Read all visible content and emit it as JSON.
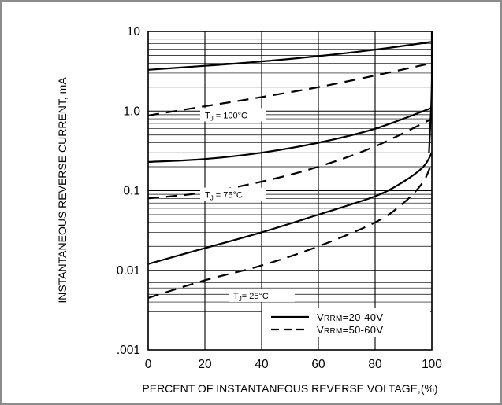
{
  "chart_data": {
    "type": "line",
    "title": "",
    "xlabel": "PERCENT OF INSTANTANEOUS REVERSE VOLTAGE,(%)",
    "ylabel": "INSTANTANEOUS REVERSE CURRENT, mA",
    "xlim": [
      0,
      100
    ],
    "ylim": [
      0.001,
      10
    ],
    "y_scale": "log",
    "grid": true,
    "x_ticks": [
      0,
      20,
      40,
      60,
      80,
      100
    ],
    "x_tick_labels": [
      "0",
      "20",
      "40",
      "60",
      "80",
      "100"
    ],
    "y_ticks": [
      0.001,
      0.01,
      0.1,
      1,
      10
    ],
    "y_tick_labels": [
      ".001",
      "0.01",
      "0.1",
      "1.0",
      "10"
    ],
    "legend": {
      "position": "bottom-right",
      "entries": [
        {
          "label": "VRRM=20-40V",
          "prefix": "V",
          "sub": "RRM",
          "rest": "=20-40V",
          "style": "solid"
        },
        {
          "label": "VRRM=50-60V",
          "prefix": "V",
          "sub": "RRM",
          "rest": "=50-60V",
          "style": "dashed"
        }
      ]
    },
    "annotations": [
      {
        "text": "TJ = 100°C",
        "t": "T",
        "sub": "J",
        "rest": " = 100°C",
        "x": 20,
        "y": 0.85
      },
      {
        "text": "TJ = 75°C",
        "t": "T",
        "sub": "J",
        "rest": " = 75°C",
        "x": 20,
        "y": 0.085
      },
      {
        "text": "TJ = 25°C",
        "t": "T",
        "sub": "J",
        "rest": "= 25°C",
        "x": 30,
        "y": 0.0046
      }
    ],
    "series": [
      {
        "style": "solid",
        "group": "TJ = 100°C",
        "x": [
          0,
          20,
          40,
          60,
          80,
          100
        ],
        "y": [
          3.3,
          3.7,
          4.2,
          4.9,
          5.9,
          7.4
        ]
      },
      {
        "style": "dashed",
        "group": "TJ = 100°C",
        "x": [
          0,
          20,
          40,
          60,
          80,
          100
        ],
        "y": [
          0.88,
          1.15,
          1.5,
          2.0,
          2.8,
          4.0
        ]
      },
      {
        "style": "solid",
        "group": "TJ = 75°C",
        "x": [
          0,
          20,
          40,
          60,
          80,
          100
        ],
        "y": [
          0.23,
          0.25,
          0.3,
          0.4,
          0.6,
          1.1
        ]
      },
      {
        "style": "dashed",
        "group": "TJ = 75°C",
        "x": [
          0,
          20,
          40,
          60,
          80,
          100
        ],
        "y": [
          0.08,
          0.095,
          0.13,
          0.2,
          0.36,
          0.8
        ]
      },
      {
        "style": "solid",
        "group": "TJ = 25°C",
        "x": [
          0,
          20,
          40,
          60,
          80,
          90,
          97,
          100
        ],
        "y": [
          0.012,
          0.019,
          0.03,
          0.05,
          0.085,
          0.13,
          0.2,
          0.3
        ]
      },
      {
        "style": "dashed",
        "group": "TJ = 25°C",
        "x": [
          0,
          20,
          40,
          60,
          80,
          90,
          97,
          100
        ],
        "y": [
          0.0045,
          0.0075,
          0.0115,
          0.02,
          0.04,
          0.07,
          0.13,
          0.23
        ]
      },
      {
        "style": "solid",
        "group": "",
        "x": [
          99,
          99.4,
          99.8,
          100,
          100,
          100,
          100
        ],
        "y": [
          0.3,
          0.6,
          1.2,
          2.5,
          5,
          8,
          10
        ]
      }
    ]
  }
}
